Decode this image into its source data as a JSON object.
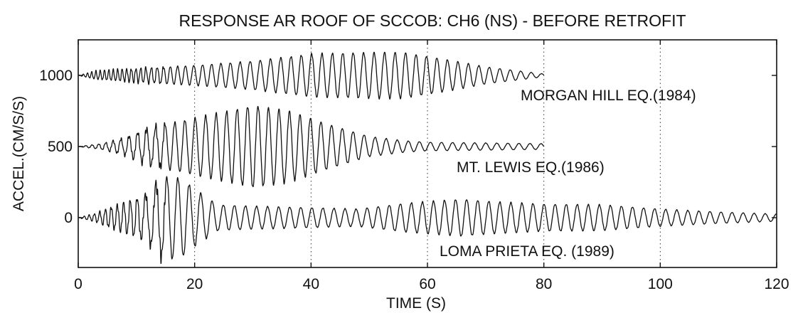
{
  "chart_data": {
    "type": "line",
    "title": "RESPONSE AR ROOF OF SCCOB: CH6 (NS) - BEFORE RETROFIT",
    "xlabel": "TIME (S)",
    "ylabel": "ACCEL.(CM/S/S)",
    "xlim": [
      0,
      120
    ],
    "ylim": [
      -350,
      1250
    ],
    "xticks": [
      0,
      20,
      40,
      60,
      80,
      100,
      120
    ],
    "yticks": [
      0,
      500,
      1000
    ],
    "grid": "dotted vertical at x ticks",
    "series": [
      {
        "name": "MORGAN HILL EQ.(1984)",
        "offset": 1000,
        "t_start": 0,
        "t_end": 80,
        "envelope": [
          [
            0,
            0
          ],
          [
            3,
            30
          ],
          [
            10,
            50
          ],
          [
            20,
            70
          ],
          [
            30,
            100
          ],
          [
            40,
            150
          ],
          [
            48,
            160
          ],
          [
            56,
            160
          ],
          [
            62,
            120
          ],
          [
            70,
            60
          ],
          [
            76,
            30
          ],
          [
            80,
            10
          ]
        ],
        "period": [
          [
            0,
            0.7
          ],
          [
            10,
            0.8
          ],
          [
            20,
            1.5
          ],
          [
            30,
            1.75
          ],
          [
            50,
            1.8
          ],
          [
            80,
            1.8
          ]
        ]
      },
      {
        "name": "MT. LEWIS EQ.(1986)",
        "offset": 500,
        "t_start": 0,
        "t_end": 80,
        "envelope": [
          [
            0,
            0
          ],
          [
            4,
            20
          ],
          [
            8,
            60
          ],
          [
            12,
            130
          ],
          [
            20,
            200
          ],
          [
            26,
            250
          ],
          [
            30,
            290
          ],
          [
            36,
            250
          ],
          [
            42,
            170
          ],
          [
            50,
            70
          ],
          [
            56,
            40
          ],
          [
            60,
            30
          ],
          [
            70,
            25
          ],
          [
            80,
            20
          ]
        ],
        "period": [
          [
            0,
            1.0
          ],
          [
            10,
            1.5
          ],
          [
            20,
            1.8
          ],
          [
            40,
            1.8
          ],
          [
            50,
            1.9
          ],
          [
            80,
            1.9
          ]
        ]
      },
      {
        "name": "LOMA PRIETA EQ. (1989)",
        "offset": 0,
        "t_start": 0,
        "t_end": 120,
        "envelope": [
          [
            0,
            0
          ],
          [
            3,
            30
          ],
          [
            6,
            80
          ],
          [
            9,
            120
          ],
          [
            12,
            170
          ],
          [
            14,
            270
          ],
          [
            16,
            290
          ],
          [
            18,
            270
          ],
          [
            20,
            200
          ],
          [
            24,
            90
          ],
          [
            30,
            80
          ],
          [
            40,
            70
          ],
          [
            48,
            60
          ],
          [
            56,
            100
          ],
          [
            66,
            130
          ],
          [
            72,
            110
          ],
          [
            80,
            95
          ],
          [
            90,
            90
          ],
          [
            100,
            60
          ],
          [
            110,
            40
          ],
          [
            120,
            25
          ]
        ],
        "period": [
          [
            0,
            0.8
          ],
          [
            10,
            1.2
          ],
          [
            12,
            1.8
          ],
          [
            20,
            2.0
          ],
          [
            25,
            1.9
          ],
          [
            120,
            1.9
          ]
        ]
      }
    ]
  }
}
